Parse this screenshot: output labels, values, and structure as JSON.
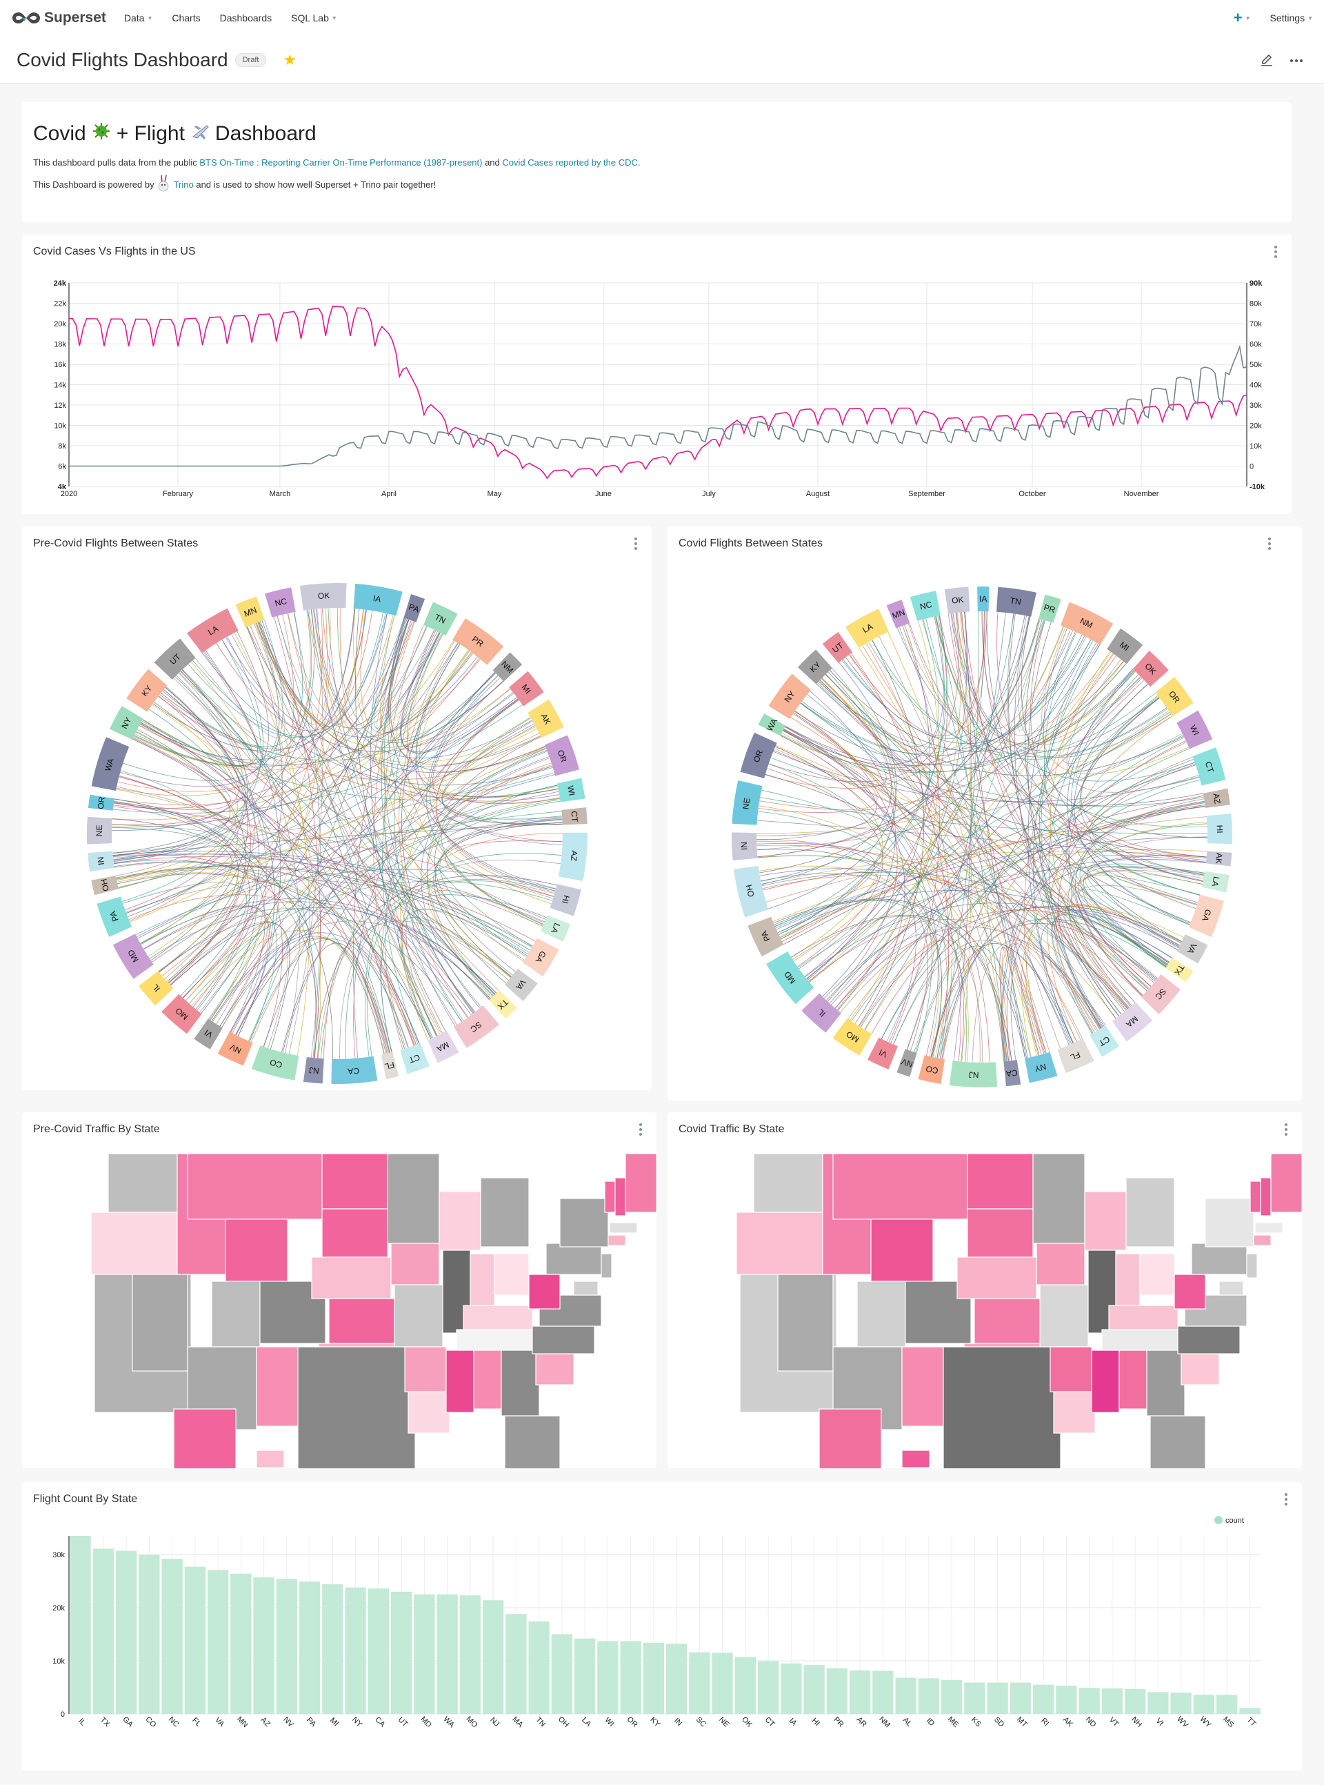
{
  "navbar": {
    "brand": "Superset",
    "items": [
      {
        "label": "Data",
        "has_caret": true
      },
      {
        "label": "Charts",
        "has_caret": false
      },
      {
        "label": "Dashboards",
        "has_caret": false
      },
      {
        "label": "SQL Lab",
        "has_caret": true
      }
    ],
    "plus_icon": "+",
    "settings_label": "Settings"
  },
  "header": {
    "title": "Covid Flights Dashboard",
    "badge": "Draft",
    "starred": true
  },
  "markdown": {
    "heading_part1": "Covid",
    "heading_part2": "+ Flight",
    "heading_part3": "Dashboard",
    "p1_text1": "This dashboard pulls data from the public ",
    "p1_link1": "BTS On-Time : Reporting Carrier On-Time Performance (1987-present)",
    "p1_text2": " and ",
    "p1_link2": "Covid Cases reported by the CDC",
    "p1_text3": ".",
    "p2_text1": "This Dashboard is powered by ",
    "p2_link": "Trino",
    "p2_text2": " and is used to show how well Superset + Trino pair together!"
  },
  "charts": {
    "line_title": "Covid Cases Vs Flights in the US",
    "pre_chord_title": "Pre-Covid Flights Between States",
    "covid_chord_title": "Covid Flights Between States",
    "pre_map_title": "Pre-Covid Traffic By State",
    "covid_map_title": "Covid Traffic By State",
    "bar_title": "Flight Count By State"
  },
  "colors": {
    "accent": "#1a85a0",
    "flights_line": "#e5168f",
    "cases_line": "#6d8591",
    "bar_fill": "#c3e9d7",
    "legend_dot": "#a7e0c5"
  },
  "chart_data": [
    {
      "type": "line",
      "title": "Covid Cases Vs Flights in the US",
      "x_ticks": [
        "2020",
        "February",
        "March",
        "April",
        "May",
        "June",
        "July",
        "August",
        "September",
        "October",
        "November"
      ],
      "y_left_ticks": [
        "4k",
        "6k",
        "8k",
        "10k",
        "12k",
        "14k",
        "16k",
        "18k",
        "20k",
        "22k",
        "24k"
      ],
      "y_right_ticks": [
        "-10k",
        "0",
        "10k",
        "20k",
        "30k",
        "40k",
        "50k",
        "60k",
        "70k",
        "80k",
        "90k"
      ],
      "ylim_left": [
        4000,
        24000
      ],
      "ylim_right": [
        -10000,
        90000
      ],
      "x_range_days": [
        0,
        335
      ],
      "series": [
        {
          "name": "flights",
          "axis": "left",
          "weekly_profile": [
            1.0,
            1.0,
            0.97,
            0.87,
            0.95,
            1.0,
            1.0
          ],
          "knots_day": [
            0,
            30,
            60,
            75,
            84,
            91,
            100,
            110,
            122,
            135,
            150,
            165,
            180,
            190,
            210,
            240,
            250,
            270,
            300,
            320,
            330,
            335
          ],
          "knots_value": [
            20500,
            20400,
            21000,
            21700,
            21500,
            19000,
            13000,
            9800,
            8000,
            5500,
            5800,
            6600,
            7800,
            10500,
            11600,
            11700,
            10700,
            11000,
            11600,
            12200,
            12400,
            13000
          ]
        },
        {
          "name": "covid_cases",
          "axis": "right",
          "weekly_profile": [
            1.0,
            1.0,
            0.98,
            0.95,
            0.93,
            0.7,
            0.65
          ],
          "knots_day": [
            0,
            60,
            70,
            80,
            90,
            100,
            120,
            140,
            160,
            180,
            195,
            210,
            240,
            270,
            290,
            305,
            315,
            325,
            330,
            335
          ],
          "knots_value": [
            0,
            0,
            2000,
            12000,
            17000,
            17000,
            16000,
            13000,
            15000,
            18000,
            22000,
            18000,
            17000,
            19000,
            25000,
            35000,
            43000,
            50000,
            45000,
            75000
          ]
        }
      ]
    },
    {
      "type": "bar",
      "title": "Flight Count By State",
      "legend": [
        "count"
      ],
      "legend_position": "top-right",
      "ylim": [
        0,
        33500
      ],
      "y_ticks": [
        "0",
        "10k",
        "20k",
        "30k"
      ],
      "categories": [
        "IL",
        "TX",
        "GA",
        "CO",
        "NC",
        "FL",
        "VA",
        "MN",
        "AZ",
        "NV",
        "PA",
        "MI",
        "NY",
        "CA",
        "UT",
        "MD",
        "WA",
        "MO",
        "NJ",
        "MA",
        "TN",
        "OH",
        "LA",
        "WI",
        "OR",
        "KY",
        "IN",
        "SC",
        "NE",
        "OK",
        "CT",
        "IA",
        "HI",
        "PR",
        "AR",
        "NM",
        "AL",
        "ID",
        "ME",
        "KS",
        "SD",
        "MT",
        "RI",
        "AK",
        "ND",
        "VT",
        "NH",
        "VI",
        "WV",
        "WY",
        "MS",
        "TT"
      ],
      "values": [
        33500,
        31100,
        30700,
        29900,
        29200,
        27700,
        27100,
        26400,
        25700,
        25400,
        24900,
        24400,
        23800,
        23600,
        23000,
        22500,
        22500,
        22300,
        21400,
        18800,
        17400,
        15000,
        14200,
        13700,
        13700,
        13400,
        13200,
        11600,
        11500,
        10700,
        9900,
        9500,
        9200,
        8600,
        8200,
        8100,
        6800,
        6700,
        6400,
        5900,
        5900,
        5900,
        5500,
        5300,
        4900,
        4800,
        4700,
        4100,
        4000,
        3600,
        3600,
        1100
      ]
    },
    {
      "type": "chord",
      "title": "Pre-Covid Flights Between States",
      "labels": [
        "OK",
        "IA",
        "PA",
        "TN",
        "PR",
        "NM",
        "MI",
        "AK",
        "OR",
        "WI",
        "CT",
        "AZ",
        "HI",
        "LA",
        "GA",
        "VA",
        "TX",
        "SC",
        "MA",
        "CT",
        "FL",
        "CA",
        "NJ",
        "CO",
        "NV",
        "VI",
        "MO",
        "IL",
        "MD",
        "PA",
        "OH",
        "IN",
        "NE",
        "OR",
        "WA",
        "NY",
        "KY",
        "UT",
        "LA",
        "MN",
        "NC"
      ],
      "arc_colors": [
        "#c9cbd9",
        "#6dc8de",
        "#8085a4",
        "#9ddcbc",
        "#f8b496",
        "#a0a0a0",
        "#ea8c98",
        "#fbde74",
        "#c69bd3",
        "#8ae0dd",
        "#c5b8ae",
        "#bfe7ef",
        "#c7cad8",
        "#cdeedd",
        "#fbd3c2",
        "#cfcfcf",
        "#fcefa8",
        "#f3c4cc",
        "#e4d6ea",
        "#c2ebef",
        "#e2ddd8",
        "#74c8de",
        "#8f92ae",
        "#a8e2c2",
        "#f8aa88",
        "#a3a3a3",
        "#ed8a96",
        "#fdde6d",
        "#c89fd3",
        "#85dedb",
        "#c9bdb2",
        "#c1e4ee"
      ]
    },
    {
      "type": "chord",
      "title": "Covid Flights Between States",
      "labels": [
        "OK",
        "IA",
        "TN",
        "PR",
        "NM",
        "MI",
        "OK",
        "OR",
        "WI",
        "CT",
        "AZ",
        "HI",
        "AK",
        "LA",
        "GA",
        "VA",
        "TX",
        "SC",
        "MA",
        "CT",
        "FL",
        "NY",
        "CA",
        "NJ",
        "CO",
        "NV",
        "VI",
        "MO",
        "IL",
        "MD",
        "PA",
        "OH",
        "IN",
        "NE",
        "OR",
        "WA",
        "NY",
        "KY",
        "UT",
        "LA",
        "MN",
        "NC"
      ]
    },
    {
      "type": "heatmap",
      "title": "Pre-Covid Traffic By State",
      "map": "USA states choropleth"
    },
    {
      "type": "heatmap",
      "title": "Covid Traffic By State",
      "map": "USA states choropleth"
    }
  ]
}
